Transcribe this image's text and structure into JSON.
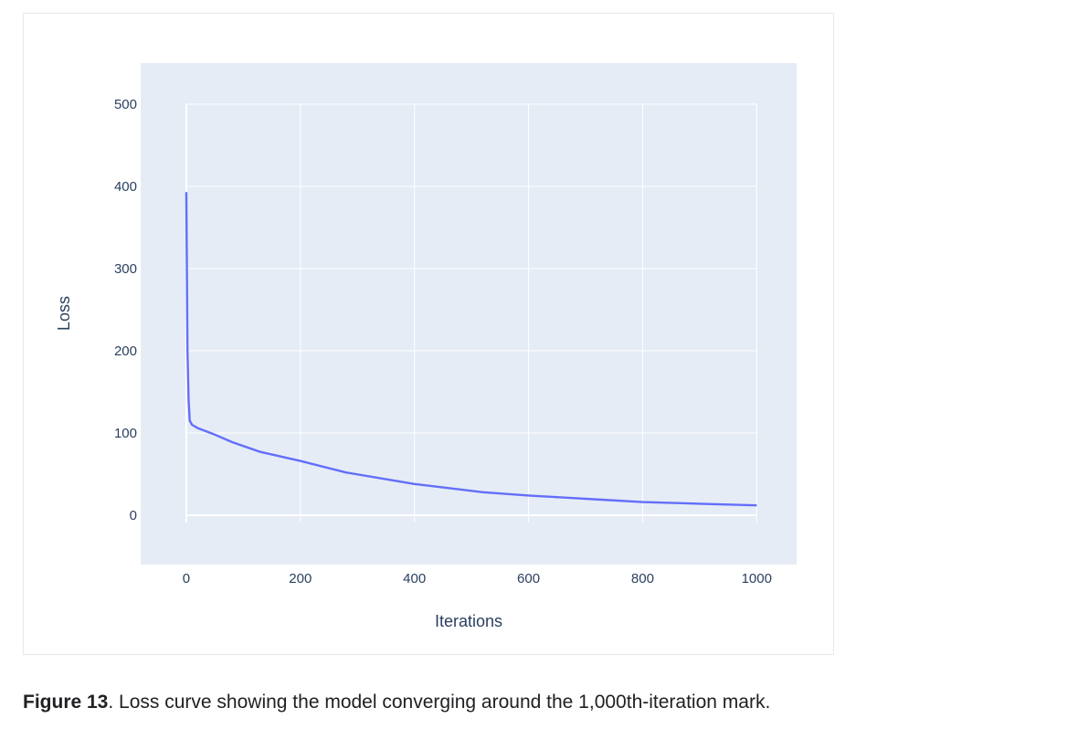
{
  "caption": {
    "label": "Figure 13",
    "text": ". Loss curve showing the model converging around the 1,000th-iteration mark."
  },
  "colors": {
    "plot_background": "#e5ecf6",
    "grid": "#ffffff",
    "line": "#636efa",
    "tick_text": "#2a3f5f"
  },
  "chart_data": {
    "type": "line",
    "title": "",
    "xlabel": "Iterations",
    "ylabel": "Loss",
    "xlim": [
      -80,
      1070
    ],
    "ylim": [
      -60,
      550
    ],
    "xticks": [
      0,
      200,
      400,
      600,
      800,
      1000
    ],
    "yticks": [
      0,
      100,
      200,
      300,
      400,
      500
    ],
    "grid": true,
    "legend": "none",
    "series": [
      {
        "x": [
          0,
          1,
          2,
          4,
          6,
          10,
          20,
          50,
          80,
          130,
          200,
          280,
          400,
          520,
          600,
          700,
          800,
          900,
          1000
        ],
        "y": [
          393,
          300,
          200,
          140,
          115,
          110,
          106,
          98,
          89,
          77,
          66,
          52,
          38,
          28,
          24,
          20,
          16,
          14,
          12
        ]
      }
    ]
  }
}
